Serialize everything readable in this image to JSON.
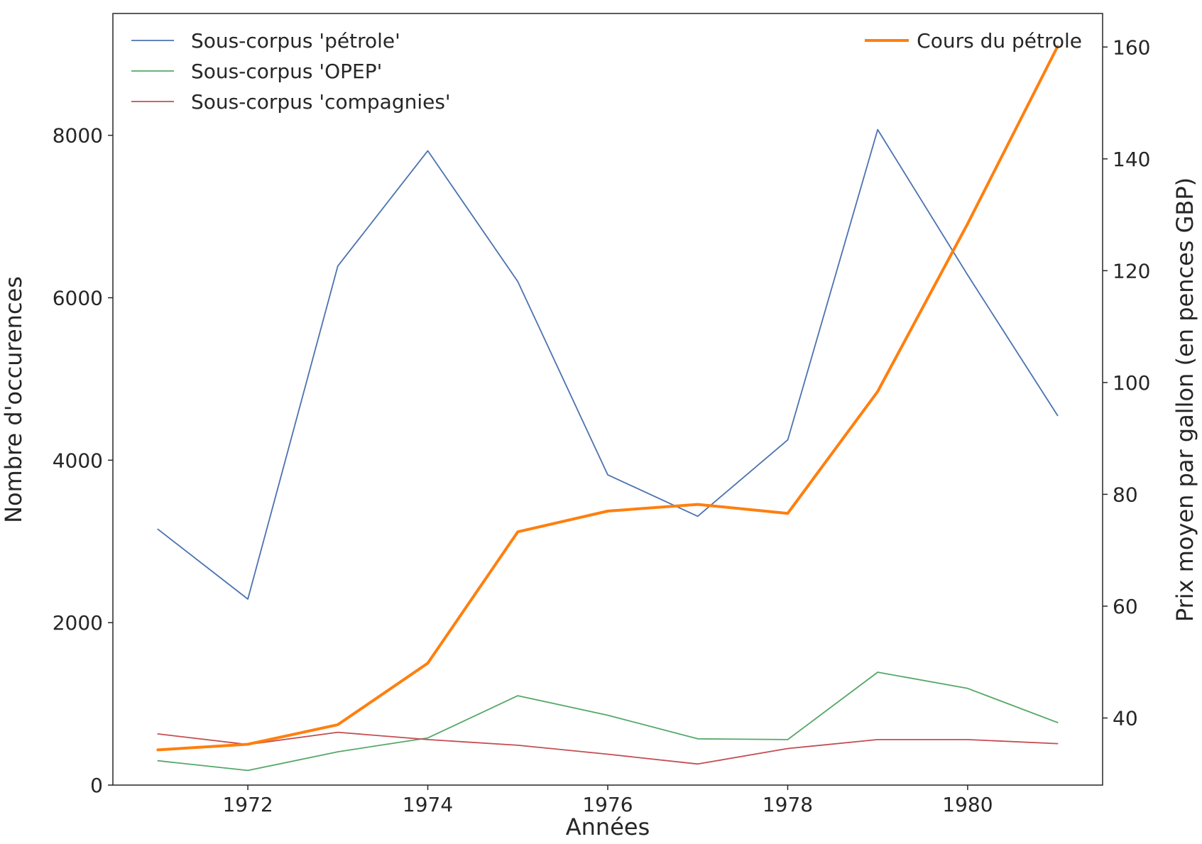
{
  "chart_data": {
    "type": "line",
    "title": "",
    "xlabel": "Années",
    "ylabel": "Nombre d'occurences",
    "y2label": "Prix moyen par gallon (en pences GBP)",
    "x": [
      1971,
      1972,
      1973,
      1974,
      1975,
      1976,
      1977,
      1978,
      1979,
      1980,
      1981
    ],
    "xlim": [
      1970.5,
      1981.5
    ],
    "ylim": [
      0,
      9500
    ],
    "y2lim": [
      28,
      166
    ],
    "xticks": [
      1972,
      1974,
      1976,
      1978,
      1980
    ],
    "yticks": [
      0,
      2000,
      4000,
      6000,
      8000
    ],
    "y2ticks": [
      40,
      60,
      80,
      100,
      120,
      140,
      160
    ],
    "grid": false,
    "legend_left_position": "top-left",
    "legend_right_position": "top-right",
    "series": [
      {
        "name": "Sous-corpus 'pétrole'",
        "axis": "left",
        "color": "#4c72b0",
        "values": [
          3150,
          2290,
          6390,
          7810,
          6200,
          3820,
          3310,
          4250,
          8070,
          6280,
          4550
        ]
      },
      {
        "name": "Sous-corpus 'OPEP'",
        "axis": "left",
        "color": "#55a868",
        "values": [
          300,
          180,
          410,
          580,
          1100,
          860,
          570,
          560,
          1390,
          1190,
          770
        ]
      },
      {
        "name": "Sous-corpus 'compagnies'",
        "axis": "left",
        "color": "#c44e52",
        "values": [
          630,
          500,
          650,
          560,
          490,
          380,
          260,
          450,
          560,
          560,
          510
        ]
      },
      {
        "name": "Cours du pétrole",
        "axis": "right",
        "color": "#ff7f0e",
        "values": [
          34.3,
          35.3,
          38.8,
          49.8,
          73.3,
          77.0,
          78.2,
          76.6,
          98.4,
          128.4,
          160.1
        ]
      }
    ]
  }
}
